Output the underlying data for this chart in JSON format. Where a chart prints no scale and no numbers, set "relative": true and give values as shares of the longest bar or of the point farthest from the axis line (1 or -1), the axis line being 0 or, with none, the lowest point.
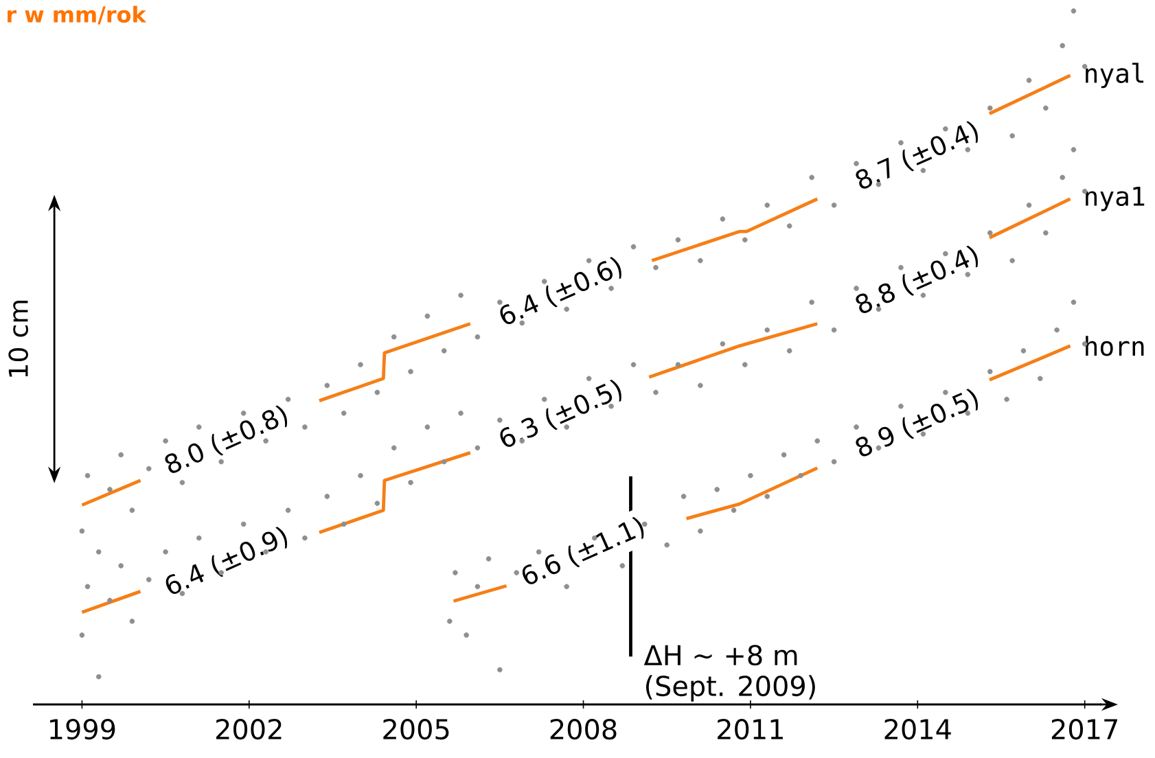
{
  "chart_data": {
    "type": "scatter",
    "title": "r w mm/rok",
    "relative": true,
    "xlim": [
      1998.12,
      2017.3
    ],
    "xticks": [
      1999,
      2002,
      2005,
      2008,
      2011,
      2014,
      2017
    ],
    "annotations": [
      "10 cm",
      "ΔH ∼ +8 m",
      "(Sept. 2009)",
      "8.0 (±0.8)",
      "6.4 (±0.6)",
      "8.7 (±0.4)",
      "6.4 (±0.9)",
      "6.3 (±0.5)",
      "8.8 (±0.4)",
      "6.6 (±1.1)",
      "8.9 (±0.5)"
    ],
    "series": [
      {
        "color": "#8f8f8f",
        "x": [
          1999.0,
          1999.1,
          1999.3,
          1999.5,
          1999.7,
          1999.9,
          2000.2,
          2000.5,
          2000.8,
          2001.1,
          2001.5,
          2001.9,
          2002.3,
          2002.7,
          2003.0,
          2003.4,
          2003.7,
          2004.0,
          2004.3,
          2004.6,
          2004.9,
          2005.2,
          2005.5,
          2005.8,
          2006.1,
          2006.5,
          2006.9,
          2007.3,
          2007.7,
          2008.1,
          2008.5,
          2008.9,
          2009.3,
          2009.7,
          2010.1,
          2010.5,
          2010.9,
          2011.3,
          2011.7,
          2012.1,
          2012.5,
          2012.9,
          2013.3,
          2013.7,
          2014.1,
          2014.5,
          2014.9,
          2015.3,
          2015.7,
          2016.0,
          2016.3,
          2016.6,
          2016.8,
          2017.0
        ],
        "values": [
          0.25,
          0.33,
          0.22,
          0.31,
          0.36,
          0.28,
          0.34,
          0.38,
          0.32,
          0.4,
          0.35,
          0.42,
          0.38,
          0.44,
          0.4,
          0.46,
          0.42,
          0.49,
          0.45,
          0.53,
          0.48,
          0.56,
          0.51,
          0.59,
          0.53,
          0.58,
          0.55,
          0.61,
          0.57,
          0.64,
          0.6,
          0.66,
          0.63,
          0.67,
          0.64,
          0.7,
          0.67,
          0.72,
          0.69,
          0.76,
          0.72,
          0.78,
          0.75,
          0.81,
          0.77,
          0.83,
          0.8,
          0.86,
          0.82,
          0.9,
          0.86,
          0.95,
          1.0,
          0.92
        ]
      },
      {
        "color": "#8f8f8f",
        "x": [
          1999.0,
          1999.1,
          1999.3,
          1999.5,
          1999.7,
          1999.9,
          2000.2,
          2000.5,
          2000.8,
          2001.1,
          2001.5,
          2001.9,
          2002.3,
          2002.7,
          2003.0,
          2003.4,
          2003.7,
          2004.0,
          2004.3,
          2004.6,
          2004.9,
          2005.2,
          2005.5,
          2005.8,
          2006.1,
          2006.5,
          2006.9,
          2007.3,
          2007.7,
          2008.1,
          2008.5,
          2008.9,
          2009.3,
          2009.7,
          2010.1,
          2010.5,
          2010.9,
          2011.3,
          2011.7,
          2012.1,
          2012.5,
          2012.9,
          2013.3,
          2013.7,
          2014.1,
          2014.5,
          2014.9,
          2015.3,
          2015.7,
          2016.0,
          2016.3,
          2016.6,
          2016.8,
          2017.0
        ],
        "values": [
          0.1,
          0.17,
          0.04,
          0.15,
          0.2,
          0.12,
          0.18,
          0.22,
          0.16,
          0.24,
          0.19,
          0.26,
          0.22,
          0.28,
          0.24,
          0.3,
          0.26,
          0.33,
          0.29,
          0.37,
          0.32,
          0.4,
          0.35,
          0.42,
          0.37,
          0.41,
          0.38,
          0.44,
          0.4,
          0.47,
          0.43,
          0.49,
          0.45,
          0.49,
          0.46,
          0.52,
          0.49,
          0.54,
          0.51,
          0.58,
          0.54,
          0.6,
          0.57,
          0.63,
          0.59,
          0.65,
          0.62,
          0.68,
          0.64,
          0.72,
          0.68,
          0.76,
          0.8,
          0.74
        ]
      },
      {
        "color": "#8f8f8f",
        "x": [
          2005.6,
          2005.7,
          2005.9,
          2006.1,
          2006.3,
          2006.5,
          2006.8,
          2007.2,
          2007.7,
          2008.2,
          2008.7,
          2009.1,
          2009.5,
          2009.8,
          2010.1,
          2010.4,
          2010.7,
          2011.0,
          2011.3,
          2011.6,
          2011.9,
          2012.2,
          2012.5,
          2012.9,
          2013.3,
          2013.7,
          2014.1,
          2014.5,
          2014.9,
          2015.3,
          2015.6,
          2015.9,
          2016.2,
          2016.5,
          2016.8,
          2017.0
        ],
        "values": [
          0.12,
          0.19,
          0.1,
          0.17,
          0.21,
          0.05,
          0.19,
          0.22,
          0.17,
          0.24,
          0.2,
          0.26,
          0.23,
          0.3,
          0.25,
          0.31,
          0.28,
          0.33,
          0.3,
          0.36,
          0.33,
          0.38,
          0.35,
          0.4,
          0.37,
          0.43,
          0.39,
          0.45,
          0.42,
          0.48,
          0.44,
          0.51,
          0.47,
          0.54,
          0.58,
          0.52
        ]
      },
      {
        "type": "line",
        "name": "nyal",
        "color": "#f57f17",
        "x": [
          1999.0,
          2000.05,
          2001.6,
          2003.26,
          2004.41,
          2004.43,
          2005.97,
          2007.6,
          2009.23,
          2010.8,
          2010.93,
          2012.2,
          2014.0,
          2015.29,
          2016.74
        ],
        "values": [
          0.2875,
          0.323,
          null,
          0.438,
          0.47,
          0.507,
          0.549,
          null,
          0.64,
          0.682,
          0.682,
          0.729,
          null,
          0.852,
          0.907
        ]
      },
      {
        "type": "line",
        "name": "nya1",
        "color": "#f57f17",
        "x": [
          1999.0,
          2000.05,
          2001.6,
          2003.26,
          2004.41,
          2004.43,
          2005.97,
          2007.6,
          2009.18,
          2010.8,
          2012.2,
          2014.0,
          2015.29,
          2016.74
        ],
        "values": [
          0.133,
          0.163,
          null,
          0.248,
          0.28,
          0.323,
          0.363,
          null,
          0.472,
          0.517,
          0.549,
          null,
          0.673,
          0.729
        ]
      },
      {
        "type": "line",
        "name": "horn",
        "color": "#f57f17",
        "x": [
          2005.67,
          2006.62,
          2008.0,
          2009.85,
          2010.8,
          2012.2,
          2014.0,
          2015.29,
          2016.74
        ],
        "values": [
          0.149,
          0.171,
          null,
          0.268,
          0.289,
          0.341,
          null,
          0.468,
          0.517
        ]
      },
      {
        "type": "line",
        "color": "#000000",
        "x": [
          2008.85,
          2008.85
        ],
        "values": [
          0.329,
          0.069
        ]
      }
    ]
  }
}
